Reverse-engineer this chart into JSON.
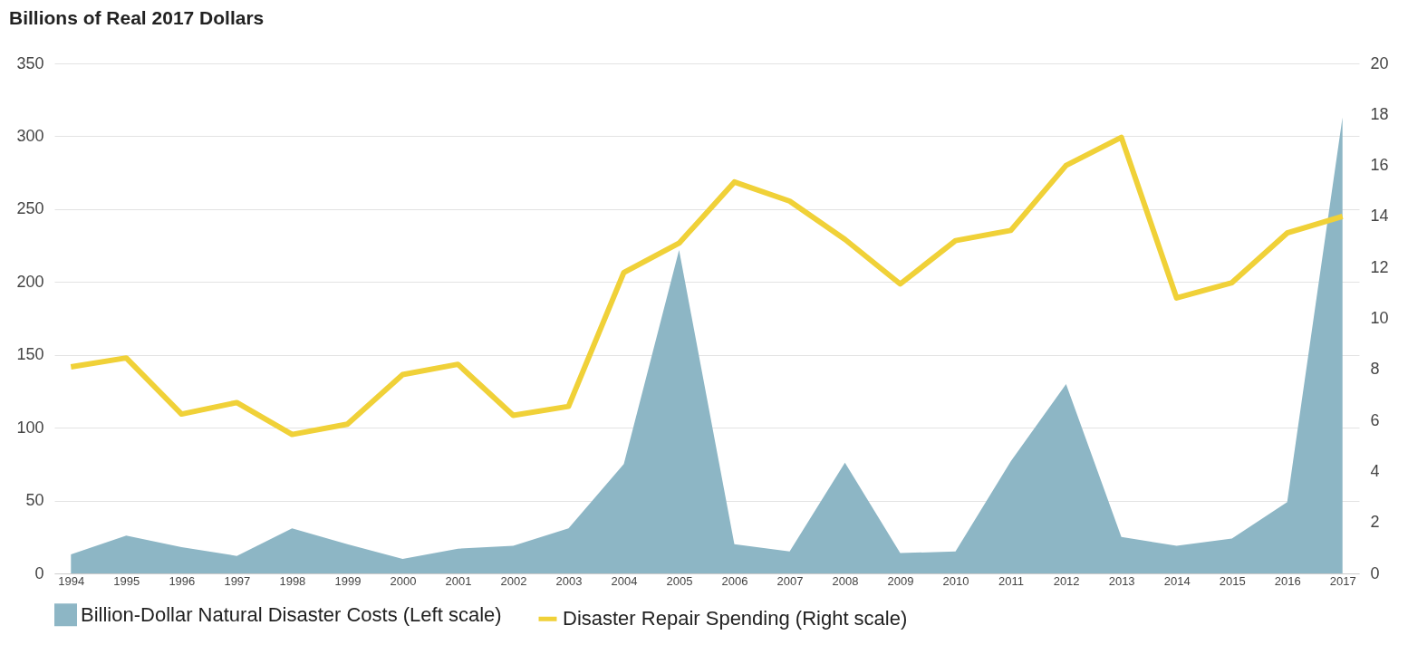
{
  "chart_data": {
    "type": "area",
    "title": "Billions of Real 2017 Dollars",
    "categories": [
      "1994",
      "1995",
      "1996",
      "1997",
      "1998",
      "1999",
      "2000",
      "2001",
      "2002",
      "2003",
      "2004",
      "2005",
      "2006",
      "2007",
      "2008",
      "2009",
      "2010",
      "2011",
      "2012",
      "2013",
      "2014",
      "2015",
      "2016",
      "2017"
    ],
    "series": [
      {
        "name": "Billion-Dollar Natural Disaster Costs (Left scale)",
        "color": "#8db6c5",
        "values": [
          13,
          26,
          18,
          12,
          31,
          20,
          10,
          17,
          19,
          31,
          75,
          222,
          20,
          15,
          76,
          14,
          15,
          77,
          130,
          25,
          19,
          24,
          49,
          313
        ]
      },
      {
        "name": "Disaster Repair Spending (Right scale)",
        "type": "line",
        "axis": "y2",
        "color": "#f0d138",
        "values": [
          8.1,
          8.45,
          6.25,
          6.7,
          5.45,
          5.85,
          7.8,
          8.2,
          6.2,
          6.55,
          11.8,
          12.95,
          15.35,
          14.6,
          13.1,
          11.35,
          13.05,
          13.45,
          16.0,
          17.1,
          10.8,
          11.4,
          13.35,
          14.0
        ]
      }
    ],
    "ylim": [
      0,
      350
    ],
    "yticks": [
      0,
      50,
      100,
      150,
      200,
      250,
      300,
      350
    ],
    "y2lim": [
      0,
      20
    ],
    "y2ticks": [
      0,
      2,
      4,
      6,
      8,
      10,
      12,
      14,
      16,
      18,
      20
    ],
    "grid": "y",
    "legend": "bottom"
  }
}
